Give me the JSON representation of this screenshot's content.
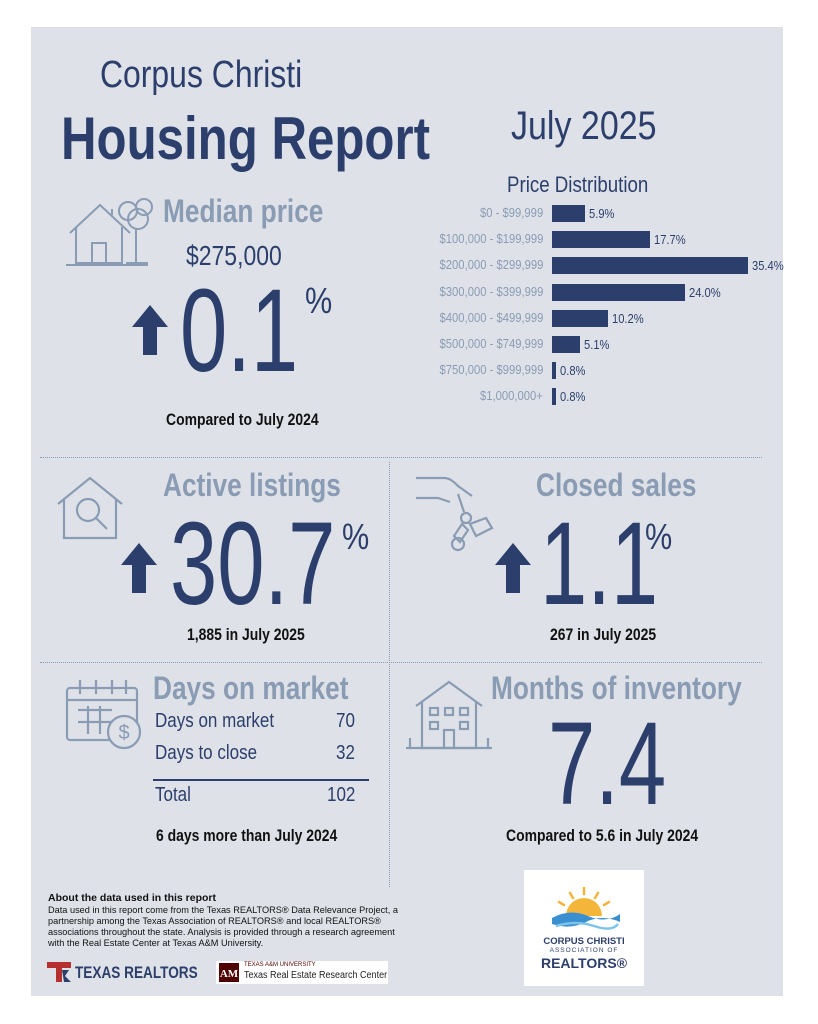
{
  "header": {
    "city": "Corpus Christi",
    "title": "Housing Report",
    "date": "July 2025"
  },
  "median_price": {
    "heading": "Median price",
    "price": "$275,000",
    "change": "0.1",
    "percent_sign": "%",
    "direction": "up",
    "caption": "Compared to July 2024"
  },
  "chart_data": {
    "type": "bar",
    "orientation": "horizontal",
    "title": "Price Distribution",
    "categories": [
      "$0 - $99,999",
      "$100,000 - $199,999",
      "$200,000 - $299,999",
      "$300,000 - $399,999",
      "$400,000 - $499,999",
      "$500,000 - $749,999",
      "$750,000 - $999,999",
      "$1,000,000+"
    ],
    "values": [
      5.9,
      17.7,
      35.4,
      24.0,
      10.2,
      5.1,
      0.8,
      0.8
    ],
    "value_labels": [
      "5.9%",
      "17.7%",
      "35.4%",
      "24.0%",
      "10.2%",
      "5.1%",
      "0.8%",
      "0.8%"
    ],
    "xlim": [
      0,
      35.4
    ],
    "color": "#2c3e6b"
  },
  "active_listings": {
    "heading": "Active listings",
    "change": "30.7",
    "percent_sign": "%",
    "direction": "up",
    "caption": "1,885 in July 2025"
  },
  "closed_sales": {
    "heading": "Closed sales",
    "change": "1.1",
    "percent_sign": "%",
    "direction": "up",
    "caption": "267 in July 2025"
  },
  "days_on_market": {
    "heading": "Days on market",
    "rows": [
      {
        "label": "Days on market",
        "value": "70"
      },
      {
        "label": "Days to close",
        "value": "32"
      }
    ],
    "total_label": "Total",
    "total_value": "102",
    "caption": "6 days more than July 2024"
  },
  "months_inventory": {
    "heading": "Months of inventory",
    "value": "7.4",
    "caption": "Compared to 5.6 in July 2024"
  },
  "about": {
    "heading": "About the data used in this report",
    "body": "Data used in this report come from the Texas REALTORS® Data Relevance Project, a partnership among the Texas Association of REALTORS® and local REALTORS® associations throughout the state. Analysis is provided through a research agreement with the Real Estate Center at Texas A&M University."
  },
  "logos": {
    "texas_realtors": "TEXAS REALTORS",
    "tamu_small": "TEXAS A&M UNIVERSITY",
    "tamu_name": "Texas Real Estate Research Center",
    "assoc_line1": "CORPUS CHRISTI",
    "assoc_line2": "ASSOCIATION OF",
    "assoc_line3": "REALTORS®"
  },
  "colors": {
    "panel": "#dee2e8",
    "navy": "#2c3e6b",
    "slate": "#8a9bb4",
    "texas_red": "#b5302e",
    "tamu_maroon": "#500000"
  }
}
